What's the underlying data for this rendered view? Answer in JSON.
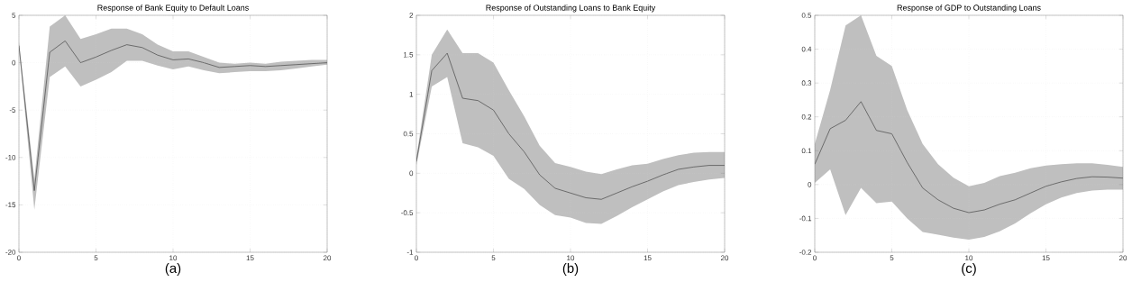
{
  "chart_data": [
    {
      "type": "line",
      "title": "Response of Bank Equity to Default Loans",
      "xlabel": "(a)",
      "x": [
        0,
        1,
        2,
        3,
        4,
        5,
        6,
        7,
        8,
        9,
        10,
        11,
        12,
        13,
        14,
        15,
        16,
        17,
        18,
        19,
        20
      ],
      "series": [
        {
          "color": "#333333",
          "values": [
            1.8,
            -13.5,
            1.1,
            2.3,
            0,
            0.6,
            1.3,
            1.9,
            1.6,
            0.8,
            0.3,
            0.4,
            0,
            -0.5,
            -0.4,
            -0.3,
            -0.4,
            -0.3,
            -0.2,
            -0.1,
            0
          ],
          "upper": [
            2.2,
            -12.3,
            3.8,
            5,
            2.5,
            3,
            3.6,
            3.6,
            3,
            1.9,
            1.2,
            1.2,
            0.6,
            0,
            -0.1,
            0,
            -0.1,
            0.1,
            0.2,
            0.3,
            0.3
          ],
          "lower": [
            1.5,
            -15.5,
            -1.5,
            -0.4,
            -2.5,
            -1.8,
            -1,
            0.2,
            0.2,
            -0.3,
            -0.7,
            -0.4,
            -0.8,
            -1.1,
            -1,
            -0.9,
            -0.9,
            -0.8,
            -0.6,
            -0.4,
            -0.2
          ]
        }
      ],
      "xlim": [
        0,
        20
      ],
      "xticks": [
        0,
        5,
        10,
        15,
        20
      ],
      "ylim": [
        -20,
        5
      ],
      "yticks": [
        -20,
        -15,
        -10,
        -5,
        0,
        5
      ],
      "grid": true
    },
    {
      "type": "line",
      "title": "Response of Outstanding Loans to Bank Equity",
      "xlabel": "(b)",
      "x": [
        0,
        1,
        2,
        3,
        4,
        5,
        6,
        7,
        8,
        9,
        10,
        11,
        12,
        13,
        14,
        15,
        16,
        17,
        18,
        19,
        20
      ],
      "series": [
        {
          "color": "#333333",
          "values": [
            0.15,
            1.3,
            1.52,
            0.95,
            0.92,
            0.8,
            0.5,
            0.27,
            -0.02,
            -0.19,
            -0.25,
            -0.31,
            -0.33,
            -0.25,
            -0.17,
            -0.1,
            -0.02,
            0.05,
            0.08,
            0.1,
            0.1
          ],
          "upper": [
            0.2,
            1.5,
            1.82,
            1.52,
            1.52,
            1.4,
            1.05,
            0.72,
            0.35,
            0.13,
            0.08,
            0.02,
            -0.01,
            0.05,
            0.1,
            0.12,
            0.18,
            0.23,
            0.26,
            0.27,
            0.27
          ],
          "lower": [
            0.1,
            1.1,
            1.22,
            0.38,
            0.33,
            0.22,
            -0.07,
            -0.2,
            -0.4,
            -0.53,
            -0.56,
            -0.63,
            -0.64,
            -0.54,
            -0.43,
            -0.33,
            -0.23,
            -0.15,
            -0.11,
            -0.08,
            -0.06
          ]
        }
      ],
      "xlim": [
        0,
        20
      ],
      "xticks": [
        0,
        5,
        10,
        15,
        20
      ],
      "ylim": [
        -1,
        2
      ],
      "yticks": [
        -1,
        -0.5,
        0,
        0.5,
        1,
        1.5,
        2
      ],
      "grid": true
    },
    {
      "type": "line",
      "title": "Response of GDP to Outstanding Loans",
      "xlabel": "(c)",
      "x": [
        0,
        1,
        2,
        3,
        4,
        5,
        6,
        7,
        8,
        9,
        10,
        11,
        12,
        13,
        14,
        15,
        16,
        17,
        18,
        19,
        20
      ],
      "series": [
        {
          "color": "#333333",
          "values": [
            0.06,
            0.165,
            0.19,
            0.245,
            0.16,
            0.15,
            0.065,
            -0.01,
            -0.045,
            -0.07,
            -0.083,
            -0.075,
            -0.058,
            -0.045,
            -0.025,
            -0.005,
            0.008,
            0.018,
            0.023,
            0.022,
            0.019
          ],
          "upper": [
            0.12,
            0.28,
            0.47,
            0.5,
            0.38,
            0.35,
            0.22,
            0.12,
            0.06,
            0.02,
            -0.005,
            0.005,
            0.025,
            0.035,
            0.048,
            0.056,
            0.06,
            0.063,
            0.063,
            0.058,
            0.052
          ],
          "lower": [
            0.005,
            0.045,
            -0.09,
            -0.01,
            -0.055,
            -0.05,
            -0.1,
            -0.14,
            -0.148,
            -0.157,
            -0.163,
            -0.155,
            -0.138,
            -0.115,
            -0.085,
            -0.058,
            -0.038,
            -0.025,
            -0.018,
            -0.015,
            -0.015
          ]
        }
      ],
      "xlim": [
        0,
        20
      ],
      "xticks": [
        0,
        5,
        10,
        15,
        20
      ],
      "ylim": [
        -0.2,
        0.5
      ],
      "yticks": [
        -0.2,
        -0.1,
        0,
        0.1,
        0.2,
        0.3,
        0.4,
        0.5
      ],
      "grid": true
    }
  ]
}
